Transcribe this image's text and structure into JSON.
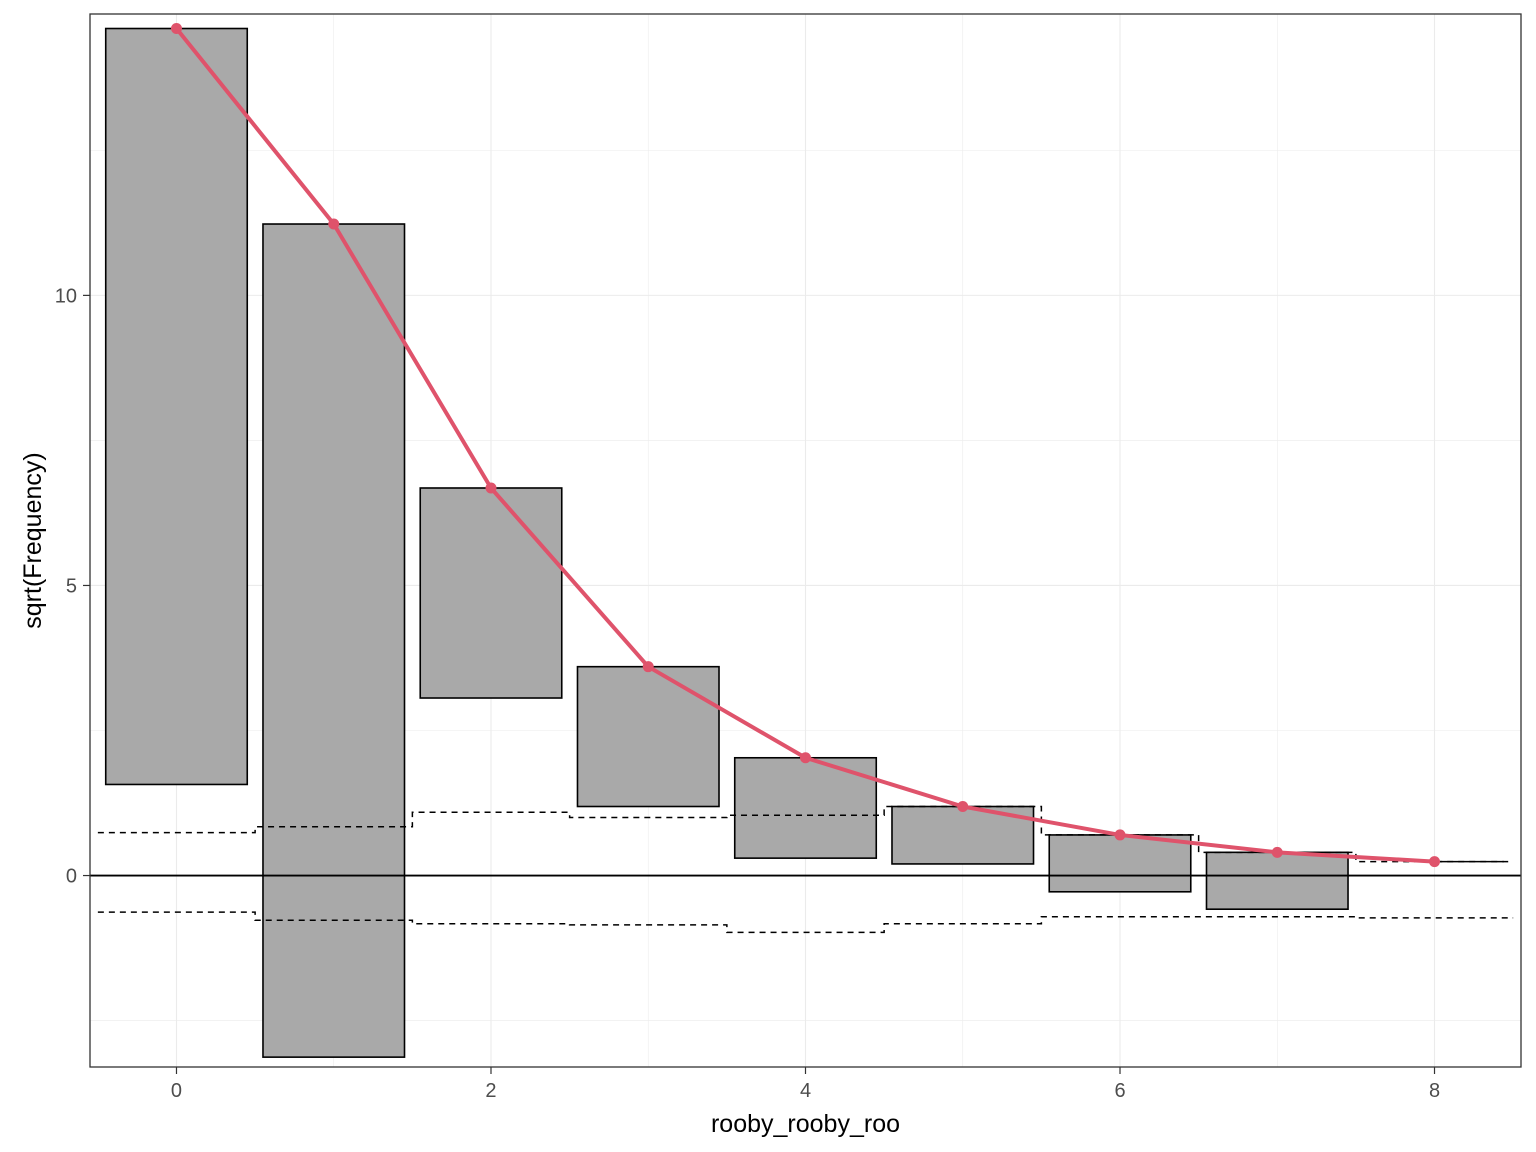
{
  "chart_data": {
    "type": "rootogram",
    "style": "hanging",
    "xlabel": "rooby_rooby_roo",
    "ylabel": "sqrt(Frequency)",
    "xlim": [
      -0.55,
      8.55
    ],
    "ylim": [
      -3.3,
      14.85
    ],
    "x_ticks": [
      0,
      2,
      4,
      6,
      8
    ],
    "y_ticks": [
      0,
      5,
      10
    ],
    "x_tick_labels": [
      "0",
      "2",
      "4",
      "6",
      "8"
    ],
    "y_tick_labels": [
      "0",
      "5",
      "10"
    ],
    "grid": true,
    "categories": [
      0,
      1,
      2,
      3,
      4,
      5,
      6,
      7,
      8
    ],
    "expected_sqrt": [
      14.6,
      11.23,
      6.68,
      3.6,
      2.03,
      1.19,
      0.7,
      0.4,
      0.24
    ],
    "bar_bottoms": [
      1.57,
      -3.13,
      3.06,
      1.19,
      0.3,
      0.2,
      -0.28,
      -0.58,
      0.24
    ],
    "confidence_band": {
      "upper": [
        0.74,
        0.84,
        1.09,
        1.0,
        1.04,
        1.19,
        0.7,
        0.4,
        0.24
      ],
      "lower": [
        -0.63,
        -0.77,
        -0.83,
        -0.85,
        -0.98,
        -0.83,
        -0.71,
        -0.71,
        -0.73
      ]
    },
    "colors": {
      "bar_fill": "#A9A9A9",
      "bar_stroke": "#000000",
      "line": "#DF536B",
      "grid": "#EBEBEB",
      "zero_line": "#000000",
      "band": "#000000"
    }
  }
}
